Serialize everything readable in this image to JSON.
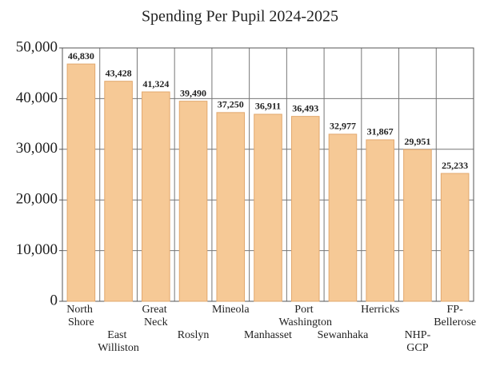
{
  "chart_data": {
    "type": "bar",
    "title": "Spending Per Pupil 2024-2025",
    "categories": [
      "North Shore",
      "East Williston",
      "Great Neck",
      "Roslyn",
      "Mineola",
      "Manhasset",
      "Port Washington",
      "Sewanhaka",
      "Herricks",
      "NHP-GCP",
      "FP-Bellerose"
    ],
    "values": [
      46830,
      43428,
      41324,
      39490,
      37250,
      36911,
      36493,
      32977,
      31867,
      29951,
      25233
    ],
    "value_labels": [
      "46,830",
      "43,428",
      "41,324",
      "39,490",
      "37,250",
      "36,911",
      "36,493",
      "32,977",
      "31,867",
      "29,951",
      "25,233"
    ],
    "color": "#f6c996",
    "ylim": [
      0,
      50000
    ],
    "yticks": [
      0,
      {
        "value": 10000,
        "label": "10,000"
      },
      {
        "value": 20000,
        "label": "20,000"
      },
      {
        "value": 30000,
        "label": "30,000"
      },
      {
        "value": 40000,
        "label": "40,000"
      },
      {
        "value": 50000,
        "label": "50,000"
      }
    ],
    "grid": true
  }
}
